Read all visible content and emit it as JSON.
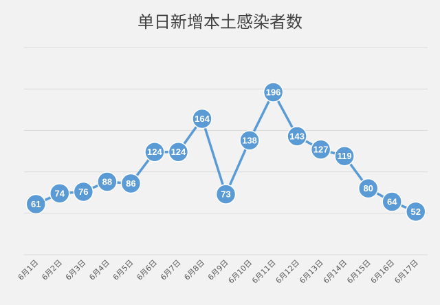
{
  "chart_data": {
    "type": "line",
    "title": "单日新增本土感染者数",
    "xlabel": "",
    "ylabel": "",
    "categories": [
      "6月1日",
      "6月2日",
      "6月3日",
      "6月4日",
      "6月5日",
      "6月6日",
      "6月7日",
      "6月8日",
      "6月9日",
      "6月10日",
      "6月11日",
      "6月12日",
      "6月13日",
      "6月14日",
      "6月15日",
      "6月16日",
      "6月17日"
    ],
    "series": [
      {
        "values": [
          61,
          74,
          76,
          88,
          86,
          124,
          124,
          164,
          73,
          138,
          196,
          143,
          127,
          119,
          80,
          64,
          52
        ]
      }
    ],
    "ylim": [
      0,
      250
    ],
    "grid": true,
    "legend": "none",
    "data_labels": true,
    "marker_color": "#5b9bd5",
    "line_color": "#5b9bd5",
    "label_color": "#ffffff"
  }
}
